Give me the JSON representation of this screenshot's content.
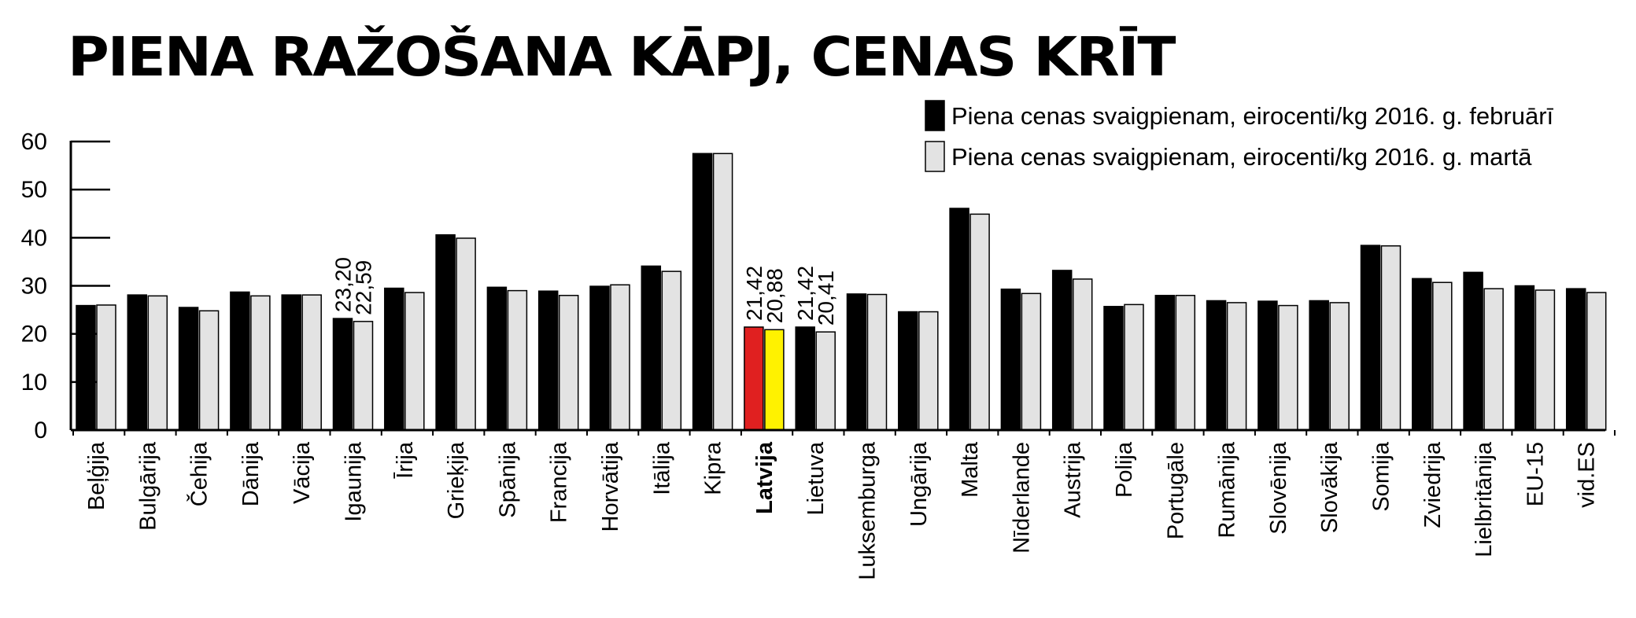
{
  "title": "PIENA RAŽOŠANA KĀPJ, CENAS KRĪT",
  "chart_data": {
    "type": "bar",
    "title": "PIENA RAŽOŠANA KĀPJ, CENAS KRĪT",
    "xlabel": "",
    "ylabel": "",
    "ylim": [
      0,
      60
    ],
    "yticks": [
      0,
      10,
      20,
      30,
      40,
      50,
      60
    ],
    "grid": false,
    "legend_position": "top-right",
    "categories": [
      "Beļģija",
      "Bulgārija",
      "Čehija",
      "Dānija",
      "Vācija",
      "Igaunija",
      "Īrija",
      "Grieķija",
      "Spānija",
      "Francija",
      "Horvātija",
      "Itālija",
      "Kipra",
      "Latvija",
      "Lietuva",
      "Luksemburga",
      "Ungārija",
      "Malta",
      "Nīderlande",
      "Austrija",
      "Polija",
      "Portugāle",
      "Rumānija",
      "Slovēnija",
      "Slovākija",
      "Somija",
      "Zviedrija",
      "Lielbritānija",
      "EU-15",
      "vid.ES"
    ],
    "highlight_category": "Latvija",
    "series": [
      {
        "name": "Piena cenas svaigpienam,  eirocenti/kg 2016. g. februārī",
        "color": "#000000",
        "values": [
          25.9,
          28.1,
          25.5,
          28.7,
          28.1,
          23.2,
          29.5,
          40.6,
          29.7,
          28.9,
          29.9,
          34.1,
          57.5,
          21.42,
          21.42,
          28.3,
          24.6,
          46.1,
          29.3,
          33.2,
          25.7,
          28.0,
          26.9,
          26.8,
          26.9,
          38.4,
          31.5,
          32.8,
          30.0,
          29.4
        ]
      },
      {
        "name": "Piena cenas svaigpienam,  eirocenti/kg 2016. g. martā",
        "color": "#e3e3e3",
        "values": [
          26.0,
          27.9,
          24.8,
          27.9,
          28.1,
          22.59,
          28.6,
          39.9,
          29.0,
          28.0,
          30.2,
          33.0,
          57.5,
          20.88,
          20.41,
          28.2,
          24.6,
          44.9,
          28.4,
          31.4,
          26.1,
          28.0,
          26.5,
          25.9,
          26.5,
          38.3,
          30.7,
          29.4,
          29.1,
          28.6
        ]
      }
    ],
    "latvija_colors": [
      "#e02020",
      "#fff200"
    ],
    "data_labels": [
      {
        "category": "Igaunija",
        "series": 0,
        "text": "23,20"
      },
      {
        "category": "Igaunija",
        "series": 1,
        "text": "22,59"
      },
      {
        "category": "Latvija",
        "series": 0,
        "text": "21,42"
      },
      {
        "category": "Latvija",
        "series": 1,
        "text": "20,88"
      },
      {
        "category": "Lietuva",
        "series": 0,
        "text": "21,42"
      },
      {
        "category": "Lietuva",
        "series": 1,
        "text": "20,41"
      }
    ]
  }
}
